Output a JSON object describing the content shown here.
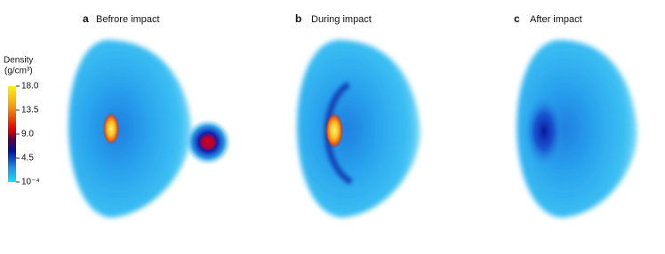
{
  "panels": [
    {
      "letter": "a",
      "title": "Befrore impact"
    },
    {
      "letter": "b",
      "title": "During impact"
    },
    {
      "letter": "c",
      "title": "After impact"
    }
  ],
  "colorbar": {
    "title": "Density",
    "unit": "(g/cm³)",
    "ticks": [
      "18.0",
      "13.5",
      "9.0",
      "4.5",
      "10⁻⁴"
    ]
  }
}
